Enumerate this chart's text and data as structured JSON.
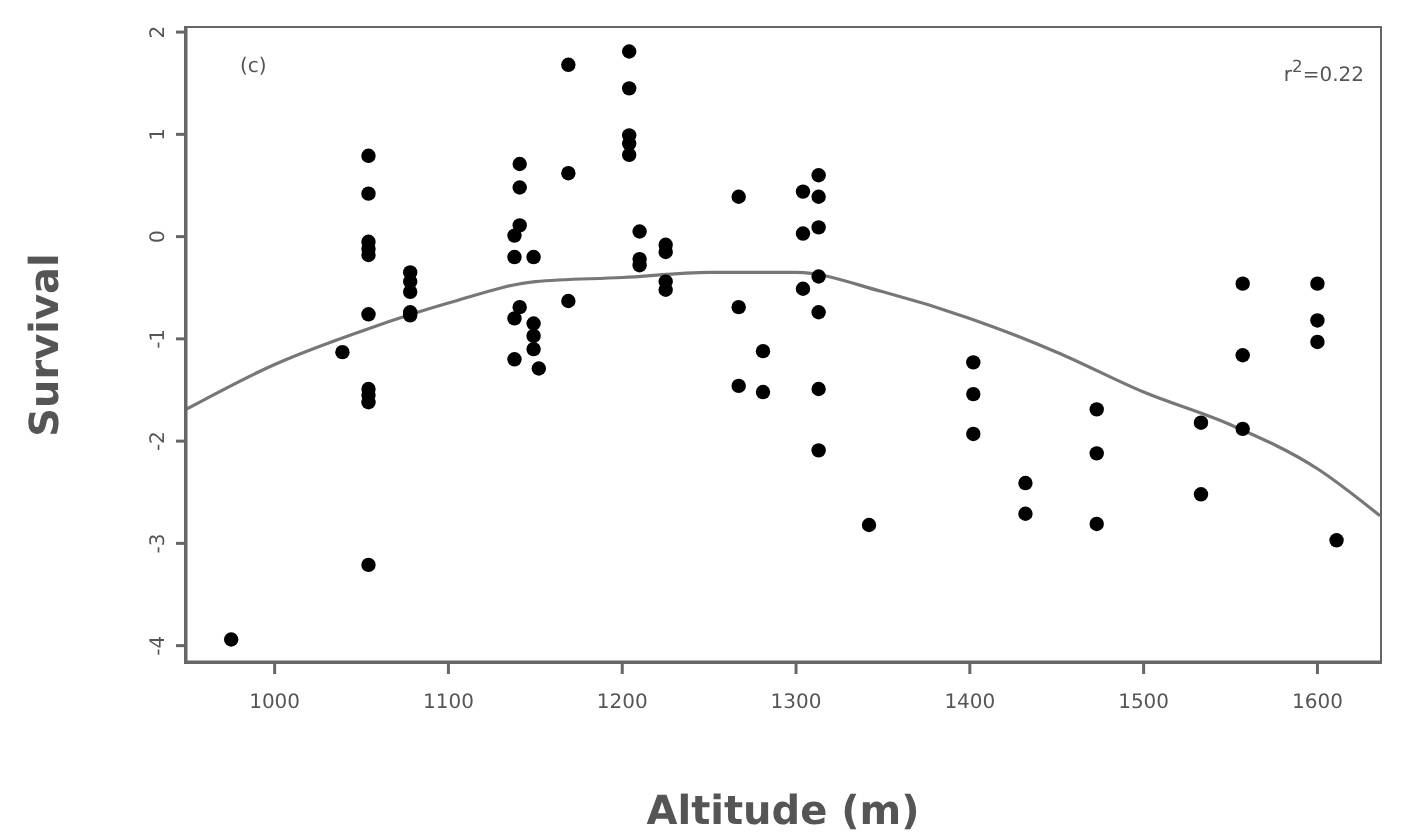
{
  "chart_data": {
    "type": "scatter",
    "xlabel": "Altitude (m)",
    "ylabel": "Survival",
    "annotations": [
      "(c)",
      "r$^{2}$=0.22"
    ],
    "xlim": [
      949,
      1636
    ],
    "xticks": [
      1000,
      1100,
      1200,
      1300,
      1400,
      1500,
      1600
    ],
    "ylim": [
      -4.16,
      2.04
    ],
    "yticks": [
      -4,
      -3,
      -2,
      -1,
      0,
      1,
      2
    ],
    "marker": "circle",
    "series": [
      {
        "color": "#000000",
        "x": [
          975,
          1039,
          1054,
          1054,
          1054,
          1054,
          1054,
          1054,
          1054,
          1054,
          1054,
          1054,
          1078,
          1078,
          1078,
          1078,
          1078,
          1141,
          1141,
          1141,
          1138,
          1138,
          1149,
          1141,
          1138,
          1149,
          1149,
          1149,
          1138,
          1152,
          1169,
          1169,
          1169,
          1204,
          1204,
          1204,
          1204,
          1204,
          1210,
          1210,
          1210,
          1225,
          1225,
          1225,
          1225,
          1267,
          1267,
          1267,
          1281,
          1281,
          1304,
          1304,
          1304,
          1313,
          1313,
          1313,
          1313,
          1313,
          1313,
          1313,
          1342,
          1402,
          1402,
          1402,
          1432,
          1432,
          1473,
          1473,
          1473,
          1533,
          1533,
          1557,
          1557,
          1557,
          1600,
          1600,
          1600,
          1611
        ],
        "values": [
          -3.94,
          -1.13,
          0.79,
          0.42,
          -0.05,
          -0.12,
          -0.18,
          -0.76,
          -1.49,
          -1.55,
          -1.62,
          -3.21,
          -0.35,
          -0.44,
          -0.54,
          -0.74,
          -0.77,
          0.71,
          0.48,
          0.11,
          0.01,
          -0.2,
          -0.2,
          -0.69,
          -0.8,
          -0.85,
          -0.97,
          -1.1,
          -1.2,
          -1.29,
          1.68,
          0.62,
          -0.63,
          1.81,
          1.45,
          0.99,
          0.91,
          0.8,
          0.05,
          -0.22,
          -0.28,
          -0.08,
          -0.15,
          -0.44,
          -0.52,
          0.39,
          -0.69,
          -1.46,
          -1.12,
          -1.52,
          0.44,
          0.03,
          -0.51,
          0.6,
          0.39,
          0.09,
          -0.39,
          -0.74,
          -1.49,
          -2.09,
          -2.82,
          -1.23,
          -1.54,
          -1.93,
          -2.41,
          -2.71,
          -1.69,
          -2.12,
          -2.81,
          -1.82,
          -2.52,
          -0.46,
          -1.16,
          -1.88,
          -0.46,
          -0.82,
          -1.03,
          -2.97
        ]
      },
      {
        "type": "line",
        "color": "#777777",
        "marker": "none",
        "line_style": "solid",
        "x": [
          949,
          1000,
          1054,
          1100,
          1150,
          1200,
          1250,
          1300,
          1350,
          1400,
          1450,
          1500,
          1550,
          1600,
          1636
        ],
        "values": [
          -1.69,
          -1.25,
          -0.9,
          -0.65,
          -0.44,
          -0.4,
          -0.35,
          -0.35,
          -0.54,
          -0.8,
          -1.13,
          -1.52,
          -1.84,
          -2.27,
          -2.73
        ]
      }
    ]
  }
}
